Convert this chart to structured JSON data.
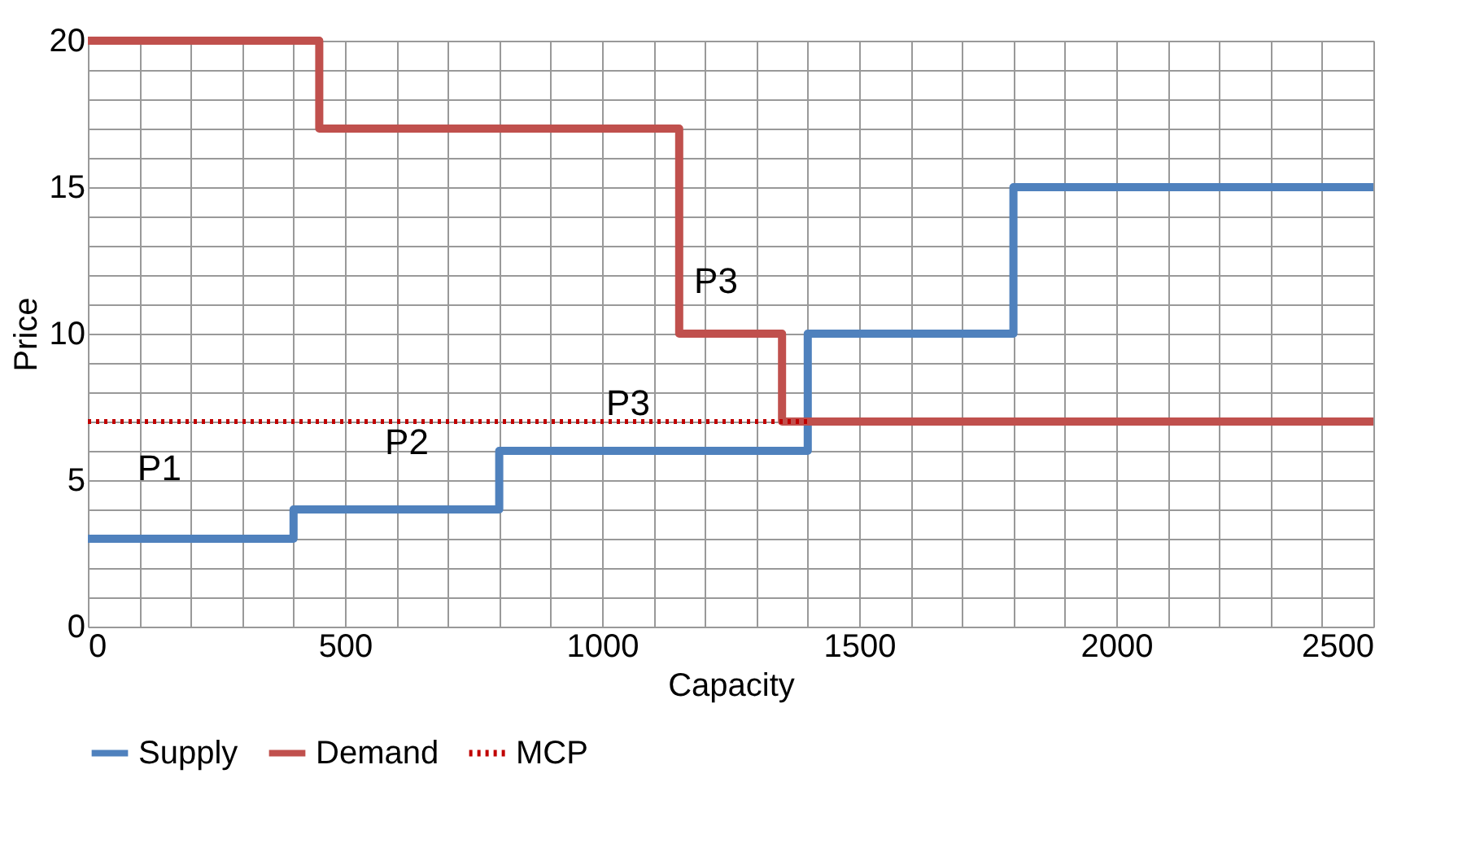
{
  "chart_data": {
    "type": "step",
    "xlabel": "Capacity",
    "ylabel": "Price",
    "xlim": [
      0,
      2500
    ],
    "ylim": [
      0,
      20
    ],
    "xticks": [
      0,
      {
        "value": 100,
        "label": null
      },
      {
        "value": 200,
        "label": null
      },
      {
        "value": 300,
        "label": null
      },
      {
        "value": 400,
        "label": null
      },
      500,
      {
        "value": 600,
        "label": null
      },
      {
        "value": 700,
        "label": null
      },
      {
        "value": 800,
        "label": null
      },
      {
        "value": 900,
        "label": null
      },
      1000,
      {
        "value": 1100,
        "label": null
      },
      {
        "value": 1200,
        "label": null
      },
      {
        "value": 1300,
        "label": null
      },
      {
        "value": 1400,
        "label": null
      },
      1500,
      {
        "value": 1600,
        "label": null
      },
      {
        "value": 1700,
        "label": null
      },
      {
        "value": 1800,
        "label": null
      },
      {
        "value": 1900,
        "label": null
      },
      2000,
      {
        "value": 2100,
        "label": null
      },
      {
        "value": 2200,
        "label": null
      },
      {
        "value": 2300,
        "label": null
      },
      {
        "value": 2400,
        "label": null
      },
      2500
    ],
    "yticks": [
      0,
      {
        "value": 1,
        "label": null
      },
      {
        "value": 2,
        "label": null
      },
      {
        "value": 3,
        "label": null
      },
      {
        "value": 4,
        "label": null
      },
      5,
      {
        "value": 6,
        "label": null
      },
      {
        "value": 7,
        "label": null
      },
      {
        "value": 8,
        "label": null
      },
      {
        "value": 9,
        "label": null
      },
      10,
      {
        "value": 11,
        "label": null
      },
      {
        "value": 12,
        "label": null
      },
      {
        "value": 13,
        "label": null
      },
      {
        "value": 14,
        "label": null
      },
      15,
      {
        "value": 16,
        "label": null
      },
      {
        "value": 17,
        "label": null
      },
      {
        "value": 18,
        "label": null
      },
      {
        "value": 19,
        "label": null
      },
      20
    ],
    "grid": true,
    "legend": "bottom",
    "series": [
      {
        "name": "Supply",
        "color": "#4f81bd",
        "line_style": "solid",
        "x": [
          0,
          400,
          800,
          1400,
          1800,
          2500
        ],
        "values": [
          3,
          4,
          6,
          10,
          15,
          15
        ]
      },
      {
        "name": "Demand",
        "color": "#c0504d",
        "line_style": "solid",
        "x": [
          0,
          450,
          1150,
          1350,
          2500
        ],
        "values": [
          20,
          17,
          10,
          7,
          7
        ]
      },
      {
        "name": "MCP",
        "color": "#c00000",
        "line_style": "dotted",
        "x": [
          0,
          1400
        ],
        "values": [
          7,
          7
        ]
      }
    ],
    "annotations": [
      "P1",
      "P2",
      "P3",
      "P3"
    ]
  }
}
